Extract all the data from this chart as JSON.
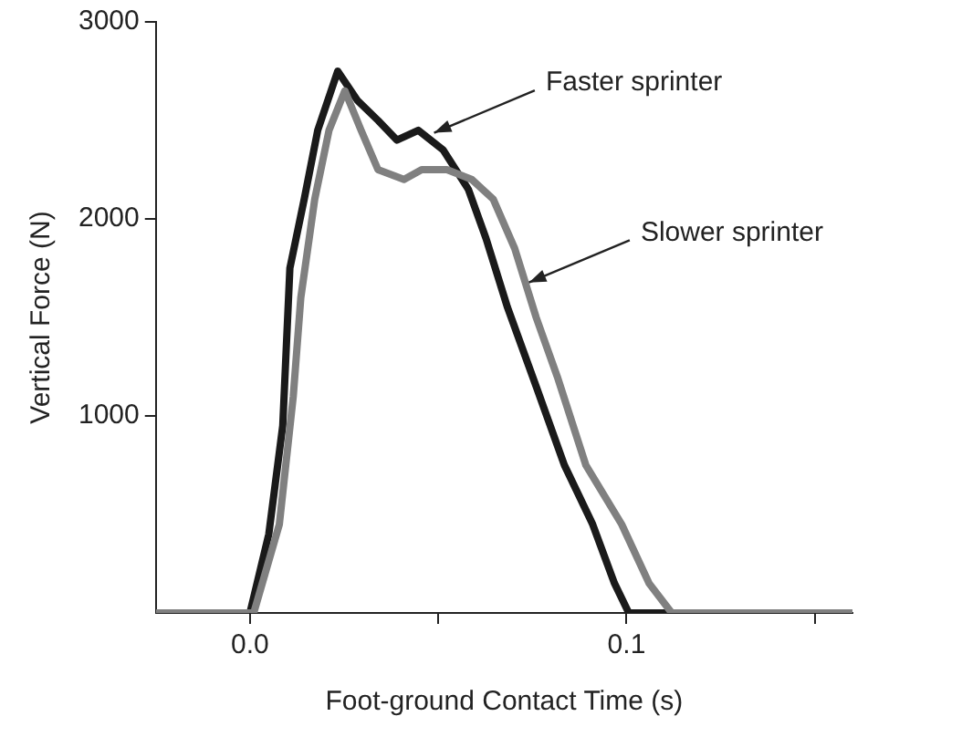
{
  "chart_data": {
    "type": "line",
    "xlabel": "Foot-ground Contact Time (s)",
    "ylabel": "Vertical Force (N)",
    "xlim": [
      -0.025,
      0.16
    ],
    "xticks": [
      {
        "value": 0,
        "label": "0.0"
      },
      {
        "value": 0.05,
        "label": null
      },
      {
        "value": 0.1,
        "label": "0.1"
      },
      {
        "value": 0.15,
        "label": null
      }
    ],
    "ylim": [
      0,
      3000
    ],
    "yticks": [
      1000,
      2000,
      3000
    ],
    "grid": false,
    "legend": false,
    "marker": "none",
    "line_style": "solid",
    "series": [
      {
        "color": "#808080",
        "x": [
          -0.025,
          0.001,
          0.0078,
          0.0115,
          0.0135,
          0.0172,
          0.021,
          0.0252,
          0.0295,
          0.034,
          0.0409,
          0.0456,
          0.0523,
          0.0589,
          0.0646,
          0.0703,
          0.076,
          0.0816,
          0.0892,
          0.0987,
          0.106,
          0.112,
          0.16
        ],
        "values": [
          0,
          0,
          450,
          1100,
          1600,
          2100,
          2450,
          2650,
          2450,
          2250,
          2200,
          2250,
          2250,
          2200,
          2100,
          1850,
          1500,
          1200,
          750,
          450,
          150,
          0,
          0
        ]
      },
      {
        "color": "#1a1a1a",
        "x": [
          -0.025,
          0.0,
          0.005,
          0.0087,
          0.0106,
          0.0144,
          0.018,
          0.0233,
          0.0286,
          0.034,
          0.039,
          0.0447,
          0.0513,
          0.058,
          0.0627,
          0.0684,
          0.076,
          0.0835,
          0.091,
          0.0968,
          0.1006,
          0.142
        ],
        "values": [
          0,
          0,
          400,
          950,
          1750,
          2100,
          2450,
          2750,
          2600,
          2500,
          2400,
          2450,
          2350,
          2150,
          1900,
          1550,
          1150,
          750,
          450,
          150,
          0,
          0
        ]
      }
    ],
    "annotations": [
      {
        "text": "Faster sprinter",
        "x": 0.048,
        "y": 2430
      },
      {
        "text": "Slower sprinter",
        "x": 0.0732,
        "y": 1670
      }
    ]
  }
}
